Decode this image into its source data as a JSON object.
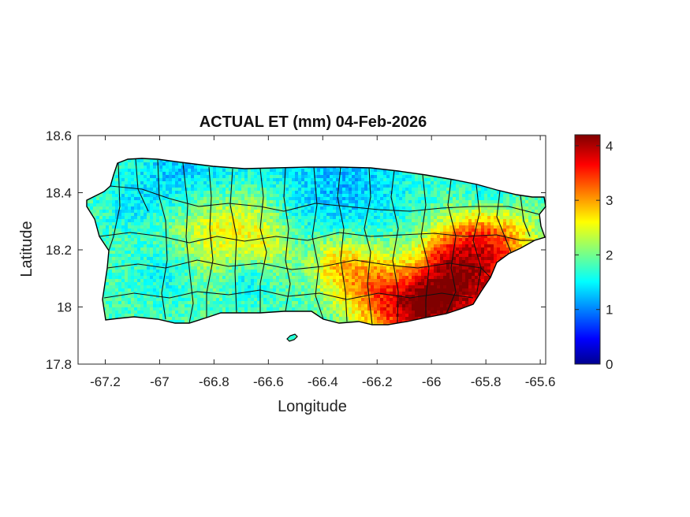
{
  "chart_data": {
    "type": "heatmap",
    "title": "ACTUAL ET (mm) 04-Feb-2026",
    "xlabel": "Longitude",
    "ylabel": "Latitude",
    "xlim": [
      -67.3,
      -65.58
    ],
    "ylim": [
      17.8,
      18.6
    ],
    "x_ticks": [
      -67.2,
      -67,
      -66.8,
      -66.6,
      -66.4,
      -66.2,
      -66,
      -65.8,
      -65.6
    ],
    "x_tick_labels": [
      "-67.2",
      "-67",
      "-66.8",
      "-66.6",
      "-66.4",
      "-66.2",
      "-66",
      "-65.8",
      "-65.6"
    ],
    "y_ticks": [
      17.8,
      18,
      18.2,
      18.4,
      18.6
    ],
    "y_tick_labels": [
      "17.8",
      "18",
      "18.2",
      "18.4",
      "18.6"
    ],
    "colorbar": {
      "colormap": "jet",
      "range": [
        0,
        4.2
      ],
      "ticks": [
        0,
        1,
        2,
        3,
        4
      ],
      "tick_labels": [
        "0",
        "1",
        "2",
        "3",
        "4"
      ]
    },
    "grid": false,
    "outline_color": "#000000"
  }
}
